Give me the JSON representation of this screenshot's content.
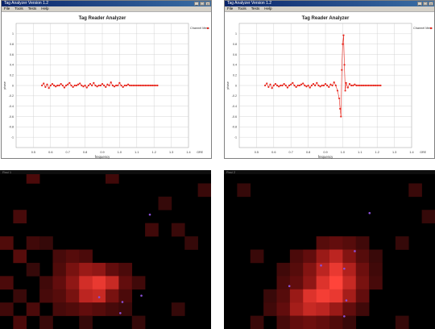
{
  "windows": [
    {
      "title": "Tag Analyzer Version 1.2",
      "menu": [
        "File",
        "Tools",
        "Tests",
        "Help"
      ],
      "buttons": [
        "_",
        "□",
        "×"
      ]
    },
    {
      "title": "Tag Analyzer Version 1.2",
      "menu": [
        "File",
        "Tools",
        "Tests",
        "Help"
      ],
      "buttons": [
        "_",
        "□",
        "×"
      ]
    }
  ],
  "heatmaps": [
    {
      "title": "Rssi 1"
    },
    {
      "title": "Rssi 2"
    }
  ],
  "colors": {
    "series": "#e8261c",
    "grid": "#cccccc",
    "window": "#d4d0c8",
    "titlebar": "#0a246a"
  },
  "chart_data": [
    {
      "type": "line",
      "title": "Tag Reader Analyzer",
      "xlabel": "frequency",
      "ylabel": "phase",
      "xlim": [
        0.4,
        1.4
      ],
      "ylim": [
        -1.2,
        1.2
      ],
      "xticks": [
        "0.5",
        "0.6",
        "0.7",
        "0.8",
        "0.9",
        "1.0",
        "1.1",
        "1.2",
        "1.3",
        "1.4"
      ],
      "yticks": [
        "1",
        "0.8",
        "0.6",
        "0.4",
        "0.2",
        "0",
        "-0.2",
        "-0.4",
        "-0.6",
        "-0.8",
        "-1"
      ],
      "legend": "Channel Mem",
      "corner_label": "GRE",
      "grid": true,
      "series": [
        {
          "name": "Channel Mem",
          "x": [
            0.55,
            0.56,
            0.57,
            0.58,
            0.59,
            0.6,
            0.61,
            0.62,
            0.63,
            0.64,
            0.65,
            0.66,
            0.67,
            0.68,
            0.69,
            0.7,
            0.71,
            0.72,
            0.73,
            0.74,
            0.75,
            0.76,
            0.77,
            0.78,
            0.79,
            0.8,
            0.81,
            0.82,
            0.83,
            0.84,
            0.85,
            0.86,
            0.87,
            0.88,
            0.89,
            0.9,
            0.91,
            0.92,
            0.93,
            0.94,
            0.95,
            0.96,
            0.97,
            0.98,
            0.99,
            1.0,
            1.01,
            1.02,
            1.03,
            1.04,
            1.05,
            1.06,
            1.07,
            1.08,
            1.09,
            1.1,
            1.11,
            1.12,
            1.13,
            1.14,
            1.15,
            1.16,
            1.17,
            1.18,
            1.19,
            1.2,
            1.21,
            1.22
          ],
          "y": [
            0,
            0.04,
            -0.03,
            0.02,
            -0.05,
            0,
            0.03,
            0,
            -0.02,
            0,
            0,
            0.03,
            0,
            -0.04,
            0,
            0.02,
            0.05,
            0,
            -0.03,
            0,
            0,
            0.02,
            0.04,
            0,
            -0.02,
            0,
            -0.04,
            0,
            0.03,
            0,
            0.05,
            0,
            -0.02,
            0,
            0,
            0.03,
            0,
            -0.03,
            0.02,
            0,
            0.06,
            0,
            -0.02,
            0,
            0,
            0.05,
            0,
            -0.03,
            0,
            0,
            0.02,
            0,
            0,
            0,
            0,
            0,
            0,
            0,
            0,
            0,
            0,
            0,
            0,
            0,
            0,
            0,
            0,
            0
          ]
        }
      ]
    },
    {
      "type": "line",
      "title": "Tag Reader Analyzer",
      "xlabel": "frequency",
      "ylabel": "phase",
      "xlim": [
        0.4,
        1.4
      ],
      "ylim": [
        -1.2,
        1.2
      ],
      "xticks": [
        "0.5",
        "0.6",
        "0.7",
        "0.8",
        "0.9",
        "1.0",
        "1.1",
        "1.2",
        "1.3",
        "1.4"
      ],
      "yticks": [
        "1",
        "0.8",
        "0.6",
        "0.4",
        "0.2",
        "0",
        "-0.2",
        "-0.4",
        "-0.6",
        "-0.8",
        "-1"
      ],
      "legend": "Channel Mem",
      "corner_label": "GRE",
      "grid": true,
      "series": [
        {
          "name": "Channel Mem",
          "x": [
            0.55,
            0.56,
            0.57,
            0.58,
            0.59,
            0.6,
            0.61,
            0.62,
            0.63,
            0.64,
            0.65,
            0.66,
            0.67,
            0.68,
            0.69,
            0.7,
            0.71,
            0.72,
            0.73,
            0.74,
            0.75,
            0.76,
            0.77,
            0.78,
            0.79,
            0.8,
            0.81,
            0.82,
            0.83,
            0.84,
            0.85,
            0.86,
            0.87,
            0.88,
            0.89,
            0.9,
            0.91,
            0.92,
            0.93,
            0.94,
            0.95,
            0.96,
            0.97,
            0.98,
            0.985,
            0.99,
            0.995,
            1.0,
            1.005,
            1.01,
            1.015,
            1.02,
            1.03,
            1.04,
            1.05,
            1.06,
            1.07,
            1.08,
            1.09,
            1.1,
            1.11,
            1.12,
            1.13,
            1.14,
            1.15,
            1.16,
            1.17,
            1.18,
            1.19,
            1.2,
            1.21,
            1.22
          ],
          "y": [
            0,
            0.04,
            -0.03,
            0.02,
            -0.05,
            0,
            0.03,
            0,
            -0.02,
            0,
            0,
            0.03,
            0,
            -0.04,
            0,
            0.02,
            0.05,
            0,
            -0.03,
            0,
            0,
            0.02,
            0.04,
            0,
            -0.02,
            0,
            -0.04,
            0,
            0.03,
            0,
            0.05,
            0,
            -0.02,
            0,
            0,
            0.03,
            0,
            -0.03,
            0.02,
            0,
            0.06,
            0,
            -0.1,
            -0.25,
            -0.45,
            -0.6,
            0.3,
            0.8,
            0.97,
            0.4,
            -0.1,
            0.05,
            -0.04,
            0.03,
            0,
            0,
            0.02,
            0,
            0,
            0,
            0,
            0,
            0,
            0,
            0,
            0,
            0,
            0,
            0,
            0,
            0,
            0
          ]
        }
      ]
    },
    {
      "type": "heatmap",
      "cols": 16,
      "rows": 12,
      "cells": [
        [
          2,
          0,
          8,
          0.2
        ],
        [
          8,
          0,
          9,
          0.15
        ],
        [
          15,
          1,
          7,
          0.12
        ],
        [
          12,
          2,
          4,
          0.1
        ],
        [
          1,
          3,
          9,
          0.18
        ],
        [
          11,
          4,
          6,
          0.15
        ],
        [
          0,
          5,
          5,
          0.22
        ],
        [
          2,
          5,
          3,
          0.15
        ],
        [
          3,
          5,
          9,
          0.1
        ],
        [
          13,
          4,
          4,
          0.12
        ],
        [
          14,
          5,
          5,
          0.1
        ],
        [
          1,
          6,
          9,
          0.25
        ],
        [
          4,
          6,
          5,
          0.18
        ],
        [
          5,
          6,
          8,
          0.25
        ],
        [
          6,
          6,
          8,
          0.2
        ],
        [
          2,
          7,
          4,
          0.1
        ],
        [
          4,
          7,
          5,
          0.22
        ],
        [
          5,
          7,
          6,
          0.4
        ],
        [
          6,
          7,
          8,
          0.55
        ],
        [
          7,
          7,
          10,
          0.5
        ],
        [
          8,
          7,
          4,
          0.3
        ],
        [
          9,
          7,
          6,
          0.2
        ],
        [
          0,
          8,
          9,
          0.2
        ],
        [
          3,
          8,
          10,
          0.15
        ],
        [
          4,
          8,
          8,
          0.3
        ],
        [
          5,
          8,
          8,
          0.5
        ],
        [
          6,
          8,
          4,
          0.8
        ],
        [
          7,
          8,
          5,
          0.9
        ],
        [
          8,
          8,
          6,
          0.75
        ],
        [
          9,
          8,
          9,
          0.3
        ],
        [
          10,
          8,
          8,
          0.15
        ],
        [
          1,
          9,
          7,
          0.12
        ],
        [
          3,
          9,
          5,
          0.18
        ],
        [
          4,
          9,
          9,
          0.25
        ],
        [
          5,
          9,
          8,
          0.4
        ],
        [
          6,
          9,
          7,
          0.7
        ],
        [
          7,
          9,
          9,
          0.75
        ],
        [
          8,
          9,
          5,
          0.4
        ],
        [
          9,
          9,
          6,
          0.2
        ],
        [
          0,
          10,
          4,
          0.15
        ],
        [
          2,
          10,
          5,
          0.2
        ],
        [
          4,
          10,
          6,
          0.18
        ],
        [
          5,
          10,
          9,
          0.22
        ],
        [
          6,
          10,
          8,
          0.3
        ],
        [
          7,
          10,
          6,
          0.25
        ],
        [
          8,
          10,
          7,
          0.18
        ],
        [
          9,
          10,
          4,
          0.12
        ],
        [
          13,
          10,
          5,
          0.1
        ],
        [
          1,
          11,
          8,
          0.2
        ],
        [
          3,
          11,
          4,
          0.12
        ],
        [
          6,
          11,
          9,
          0.1
        ],
        [
          10,
          11,
          8,
          0.1
        ]
      ],
      "markers": [
        [
          0.71,
          0.28
        ],
        [
          0.47,
          0.8
        ],
        [
          0.58,
          0.83
        ],
        [
          0.67,
          0.79
        ],
        [
          0.57,
          0.9
        ]
      ]
    },
    {
      "type": "heatmap",
      "cols": 16,
      "rows": 12,
      "cells": [
        [
          1,
          1,
          9,
          0.1
        ],
        [
          14,
          1,
          7,
          0.12
        ],
        [
          15,
          3,
          5,
          0.1
        ],
        [
          13,
          5,
          7,
          0.1
        ],
        [
          2,
          6,
          9,
          0.12
        ],
        [
          7,
          5,
          10,
          0.25
        ],
        [
          8,
          5,
          4,
          0.3
        ],
        [
          9,
          5,
          5,
          0.25
        ],
        [
          10,
          5,
          6,
          0.15
        ],
        [
          5,
          6,
          8,
          0.2
        ],
        [
          6,
          6,
          9,
          0.3
        ],
        [
          7,
          6,
          8,
          0.55
        ],
        [
          8,
          6,
          7,
          0.7
        ],
        [
          9,
          6,
          6,
          0.45
        ],
        [
          10,
          6,
          5,
          0.25
        ],
        [
          11,
          6,
          4,
          0.12
        ],
        [
          4,
          7,
          5,
          0.15
        ],
        [
          5,
          7,
          4,
          0.25
        ],
        [
          6,
          7,
          5,
          0.45
        ],
        [
          7,
          7,
          6,
          0.7
        ],
        [
          8,
          7,
          7,
          0.9
        ],
        [
          9,
          7,
          8,
          0.65
        ],
        [
          10,
          7,
          9,
          0.35
        ],
        [
          11,
          7,
          10,
          0.15
        ],
        [
          4,
          8,
          8,
          0.2
        ],
        [
          5,
          8,
          9,
          0.3
        ],
        [
          6,
          8,
          8,
          0.5
        ],
        [
          7,
          8,
          4,
          0.85
        ],
        [
          8,
          8,
          5,
          1.0
        ],
        [
          9,
          8,
          6,
          0.75
        ],
        [
          10,
          8,
          4,
          0.4
        ],
        [
          11,
          8,
          5,
          0.18
        ],
        [
          3,
          9,
          7,
          0.12
        ],
        [
          4,
          9,
          8,
          0.25
        ],
        [
          5,
          9,
          9,
          0.55
        ],
        [
          6,
          9,
          10,
          0.85
        ],
        [
          7,
          9,
          4,
          0.95
        ],
        [
          8,
          9,
          5,
          0.9
        ],
        [
          9,
          9,
          6,
          0.6
        ],
        [
          10,
          9,
          8,
          0.3
        ],
        [
          3,
          10,
          9,
          0.15
        ],
        [
          4,
          10,
          10,
          0.3
        ],
        [
          5,
          10,
          6,
          0.6
        ],
        [
          6,
          10,
          7,
          0.75
        ],
        [
          7,
          10,
          8,
          0.7
        ],
        [
          8,
          10,
          9,
          0.55
        ],
        [
          9,
          10,
          5,
          0.3
        ],
        [
          10,
          10,
          4,
          0.15
        ],
        [
          2,
          11,
          6,
          0.12
        ],
        [
          4,
          11,
          8,
          0.18
        ],
        [
          5,
          11,
          5,
          0.3
        ],
        [
          6,
          11,
          4,
          0.35
        ],
        [
          7,
          11,
          9,
          0.3
        ],
        [
          8,
          11,
          6,
          0.22
        ],
        [
          9,
          11,
          7,
          0.12
        ],
        [
          13,
          11,
          10,
          0.1
        ]
      ],
      "markers": [
        [
          0.69,
          0.27
        ],
        [
          0.62,
          0.51
        ],
        [
          0.46,
          0.6
        ],
        [
          0.57,
          0.62
        ],
        [
          0.31,
          0.73
        ],
        [
          0.58,
          0.82
        ],
        [
          0.57,
          0.92
        ]
      ]
    }
  ]
}
